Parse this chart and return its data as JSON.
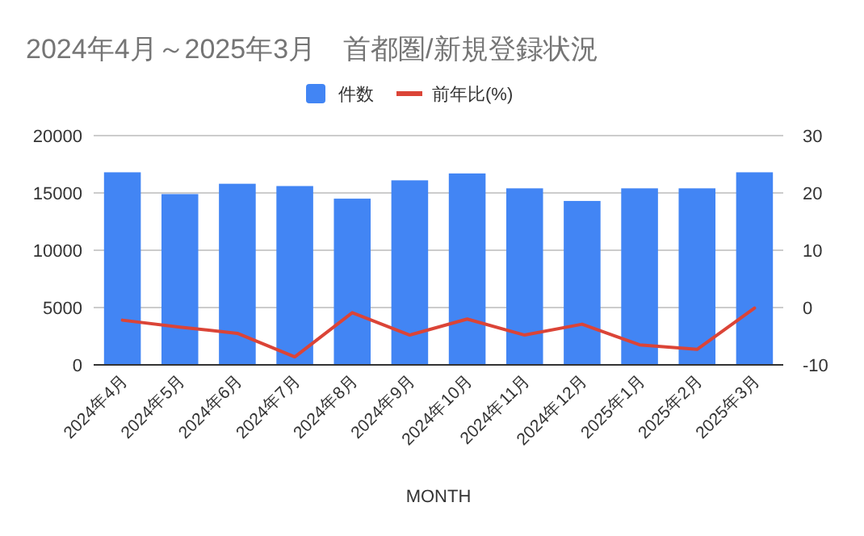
{
  "chart_data": {
    "type": "bar",
    "title": "2024年4月～2025年3月　首都圏/新規登録状況",
    "xlabel": "MONTH",
    "categories": [
      "2024年4月",
      "2024年5月",
      "2024年6月",
      "2024年7月",
      "2024年8月",
      "2024年9月",
      "2024年10月",
      "2024年11月",
      "2024年12月",
      "2025年1月",
      "2025年2月",
      "2025年3月"
    ],
    "series": [
      {
        "name": "件数",
        "color": "#4285f4",
        "values": [
          16800,
          14900,
          15800,
          15600,
          14500,
          16100,
          16700,
          15400,
          14300,
          15400,
          15400,
          16800
        ]
      },
      {
        "name": "前年比(%)",
        "type": "line",
        "axis": "y2",
        "color": "#db4437",
        "values": [
          -2.2,
          -3.4,
          -4.5,
          -8.6,
          -0.9,
          -4.8,
          -2.0,
          -4.8,
          -2.9,
          -6.5,
          -7.3,
          -0.1
        ]
      }
    ],
    "ylim": [
      0,
      20000
    ],
    "yticks": [
      0,
      5000,
      10000,
      15000,
      20000
    ],
    "y2lim": [
      -10,
      30
    ],
    "y2ticks": [
      -10,
      0,
      10,
      20,
      30
    ],
    "grid": "y",
    "legend": "top"
  }
}
